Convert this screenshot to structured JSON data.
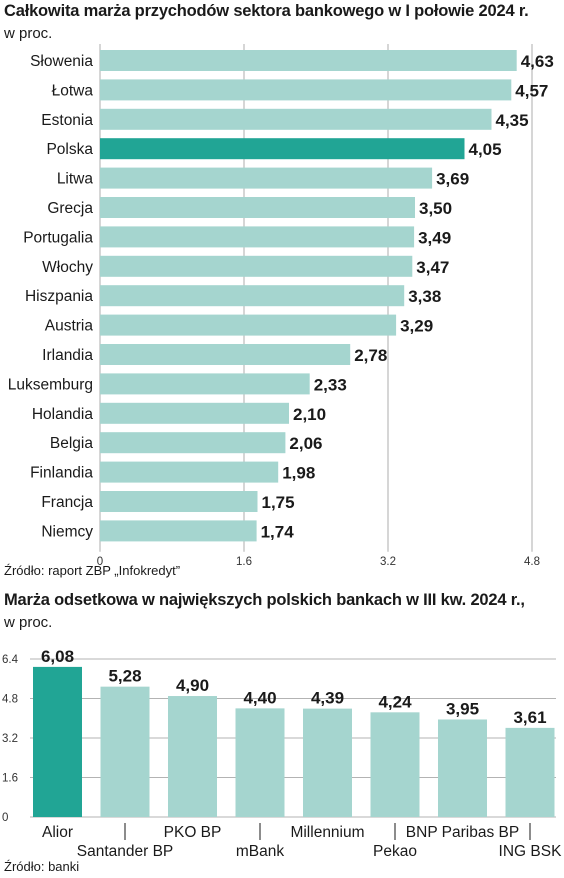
{
  "chart_data": [
    {
      "type": "bar",
      "orientation": "horizontal",
      "title": "Całkowita marża przychodów sektora bankowego w I połowie 2024 r.",
      "subtitle": "w proc.",
      "source": "Źródło: raport ZBP „Infokredyt”",
      "categories": [
        "Słowenia",
        "Łotwa",
        "Estonia",
        "Polska",
        "Litwa",
        "Grecja",
        "Portugalia",
        "Włochy",
        "Hiszpania",
        "Austria",
        "Irlandia",
        "Luksemburg",
        "Holandia",
        "Belgia",
        "Finlandia",
        "Francja",
        "Niemcy"
      ],
      "values": [
        4.63,
        4.57,
        4.35,
        4.05,
        3.69,
        3.5,
        3.49,
        3.47,
        3.38,
        3.29,
        2.78,
        2.33,
        2.1,
        2.06,
        1.98,
        1.75,
        1.74
      ],
      "value_labels": [
        "4,63",
        "4,57",
        "4,35",
        "4,05",
        "3,69",
        "3,50",
        "3,49",
        "3,47",
        "3,38",
        "3,29",
        "2,78",
        "2,33",
        "2,10",
        "2,06",
        "1,98",
        "1,75",
        "1,74"
      ],
      "highlight": "Polska",
      "xlim": [
        0,
        4.8
      ],
      "ticks": [
        0,
        1.6,
        3.2,
        4.8
      ],
      "tick_labels": [
        "0",
        "1.6",
        "3.2",
        "4.8"
      ],
      "grid": true,
      "colors": {
        "bar": "#a5d5cf",
        "highlight": "#21a595",
        "grid": "#9a9a9a"
      }
    },
    {
      "type": "bar",
      "orientation": "vertical",
      "title": "Marża odsetkowa w największych polskich bankach w III kw. 2024 r.,",
      "subtitle": "w proc.",
      "source": "Źródło: banki",
      "categories": [
        "Alior",
        "Santander BP",
        "PKO BP",
        "mBank",
        "Millennium",
        "Pekao",
        "BNP Paribas BP",
        "ING BSK"
      ],
      "values": [
        6.08,
        5.28,
        4.9,
        4.4,
        4.39,
        4.24,
        3.95,
        3.61
      ],
      "value_labels": [
        "6,08",
        "5,28",
        "4,90",
        "4,40",
        "4,39",
        "4,24",
        "3,95",
        "3,61"
      ],
      "highlight": "Alior",
      "ylim": [
        0,
        6.4
      ],
      "ticks": [
        0,
        1.6,
        3.2,
        4.8,
        6.4
      ],
      "tick_labels": [
        "0",
        "1.6",
        "3.2",
        "4.8",
        "6.4"
      ],
      "grid": true,
      "colors": {
        "bar": "#a5d5cf",
        "highlight": "#21a595",
        "grid": "#9a9a9a"
      }
    }
  ]
}
